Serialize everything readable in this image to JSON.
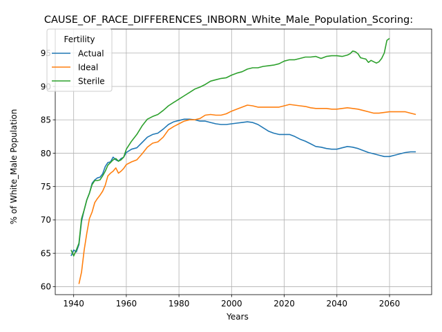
{
  "chart_data": {
    "type": "line",
    "title": "CAUSE_OF_RACE_DIFFERENCES_INBORN_White_Male_Population_Scoring:",
    "xlabel": "Years",
    "ylabel": "% of White_Male Population",
    "xlim": [
      1933,
      2076
    ],
    "ylim": [
      58.8,
      98.6
    ],
    "xticks": [
      1940,
      1960,
      1980,
      2000,
      2020,
      2040,
      2060
    ],
    "yticks": [
      60,
      65,
      70,
      75,
      80,
      85,
      90,
      95
    ],
    "grid": true,
    "legend": {
      "title": "Fertility",
      "placement": "top-left"
    },
    "series": [
      {
        "name": "Actual",
        "color": "#1f77b4",
        "points": [
          [
            1939,
            64.6
          ],
          [
            1940,
            65.5
          ],
          [
            1941,
            65.2
          ],
          [
            1942,
            66.3
          ],
          [
            1943,
            69.8
          ],
          [
            1944,
            71.5
          ],
          [
            1945,
            73.0
          ],
          [
            1946,
            74.0
          ],
          [
            1947,
            75.5
          ],
          [
            1948,
            76.0
          ],
          [
            1949,
            76.3
          ],
          [
            1950,
            76.4
          ],
          [
            1951,
            76.9
          ],
          [
            1952,
            78.0
          ],
          [
            1953,
            78.6
          ],
          [
            1954,
            78.7
          ],
          [
            1955,
            79.4
          ],
          [
            1956,
            79.0
          ],
          [
            1957,
            78.8
          ],
          [
            1958,
            79.2
          ],
          [
            1959,
            79.4
          ],
          [
            1960,
            80.1
          ],
          [
            1962,
            80.6
          ],
          [
            1964,
            80.8
          ],
          [
            1966,
            81.6
          ],
          [
            1968,
            82.4
          ],
          [
            1970,
            82.8
          ],
          [
            1972,
            83.0
          ],
          [
            1974,
            83.6
          ],
          [
            1976,
            84.3
          ],
          [
            1978,
            84.7
          ],
          [
            1980,
            84.9
          ],
          [
            1982,
            85.1
          ],
          [
            1984,
            85.1
          ],
          [
            1986,
            85.0
          ],
          [
            1988,
            84.8
          ],
          [
            1990,
            84.8
          ],
          [
            1992,
            84.6
          ],
          [
            1994,
            84.4
          ],
          [
            1996,
            84.3
          ],
          [
            1998,
            84.3
          ],
          [
            2000,
            84.4
          ],
          [
            2002,
            84.5
          ],
          [
            2004,
            84.6
          ],
          [
            2006,
            84.7
          ],
          [
            2008,
            84.6
          ],
          [
            2010,
            84.3
          ],
          [
            2012,
            83.8
          ],
          [
            2014,
            83.3
          ],
          [
            2016,
            83.0
          ],
          [
            2018,
            82.8
          ],
          [
            2020,
            82.8
          ],
          [
            2022,
            82.8
          ],
          [
            2024,
            82.5
          ],
          [
            2026,
            82.1
          ],
          [
            2028,
            81.8
          ],
          [
            2030,
            81.4
          ],
          [
            2032,
            81.0
          ],
          [
            2034,
            80.9
          ],
          [
            2036,
            80.7
          ],
          [
            2038,
            80.6
          ],
          [
            2040,
            80.6
          ],
          [
            2042,
            80.8
          ],
          [
            2044,
            81.0
          ],
          [
            2046,
            80.9
          ],
          [
            2048,
            80.7
          ],
          [
            2050,
            80.4
          ],
          [
            2052,
            80.1
          ],
          [
            2054,
            79.9
          ],
          [
            2056,
            79.7
          ],
          [
            2058,
            79.5
          ],
          [
            2060,
            79.5
          ],
          [
            2062,
            79.7
          ],
          [
            2064,
            79.9
          ],
          [
            2066,
            80.1
          ],
          [
            2068,
            80.2
          ],
          [
            2070,
            80.2
          ]
        ]
      },
      {
        "name": "Ideal",
        "color": "#ff7f0e",
        "points": [
          [
            1942,
            60.4
          ],
          [
            1943,
            62.2
          ],
          [
            1944,
            65.5
          ],
          [
            1945,
            68.0
          ],
          [
            1946,
            70.2
          ],
          [
            1947,
            71.2
          ],
          [
            1948,
            72.6
          ],
          [
            1949,
            73.2
          ],
          [
            1950,
            73.7
          ],
          [
            1951,
            74.3
          ],
          [
            1952,
            75.2
          ],
          [
            1953,
            76.6
          ],
          [
            1954,
            77.0
          ],
          [
            1955,
            77.3
          ],
          [
            1956,
            77.8
          ],
          [
            1957,
            77.0
          ],
          [
            1958,
            77.3
          ],
          [
            1959,
            77.7
          ],
          [
            1960,
            78.3
          ],
          [
            1962,
            78.7
          ],
          [
            1964,
            79.0
          ],
          [
            1966,
            79.9
          ],
          [
            1968,
            80.9
          ],
          [
            1970,
            81.5
          ],
          [
            1972,
            81.7
          ],
          [
            1974,
            82.4
          ],
          [
            1976,
            83.5
          ],
          [
            1978,
            84.0
          ],
          [
            1980,
            84.4
          ],
          [
            1982,
            84.8
          ],
          [
            1984,
            85.0
          ],
          [
            1986,
            85.0
          ],
          [
            1988,
            85.2
          ],
          [
            1990,
            85.7
          ],
          [
            1992,
            85.8
          ],
          [
            1994,
            85.7
          ],
          [
            1996,
            85.7
          ],
          [
            1998,
            85.9
          ],
          [
            2000,
            86.3
          ],
          [
            2002,
            86.6
          ],
          [
            2004,
            86.9
          ],
          [
            2006,
            87.2
          ],
          [
            2008,
            87.1
          ],
          [
            2010,
            86.9
          ],
          [
            2012,
            86.9
          ],
          [
            2014,
            86.9
          ],
          [
            2016,
            86.9
          ],
          [
            2018,
            86.9
          ],
          [
            2020,
            87.1
          ],
          [
            2022,
            87.3
          ],
          [
            2024,
            87.2
          ],
          [
            2026,
            87.1
          ],
          [
            2028,
            87.0
          ],
          [
            2030,
            86.8
          ],
          [
            2032,
            86.7
          ],
          [
            2034,
            86.7
          ],
          [
            2036,
            86.7
          ],
          [
            2038,
            86.6
          ],
          [
            2040,
            86.6
          ],
          [
            2042,
            86.7
          ],
          [
            2044,
            86.8
          ],
          [
            2046,
            86.7
          ],
          [
            2048,
            86.6
          ],
          [
            2050,
            86.4
          ],
          [
            2052,
            86.2
          ],
          [
            2054,
            86.0
          ],
          [
            2056,
            86.0
          ],
          [
            2058,
            86.1
          ],
          [
            2060,
            86.2
          ],
          [
            2062,
            86.2
          ],
          [
            2064,
            86.2
          ],
          [
            2066,
            86.2
          ],
          [
            2068,
            86.0
          ],
          [
            2070,
            85.8
          ]
        ]
      },
      {
        "name": "Sterile",
        "color": "#2ca02c",
        "points": [
          [
            1939,
            65.5
          ],
          [
            1940,
            64.6
          ],
          [
            1941,
            65.5
          ],
          [
            1942,
            66.5
          ],
          [
            1943,
            70.2
          ],
          [
            1944,
            71.5
          ],
          [
            1945,
            73.0
          ],
          [
            1946,
            74.0
          ],
          [
            1947,
            75.3
          ],
          [
            1948,
            75.9
          ],
          [
            1949,
            75.9
          ],
          [
            1950,
            76.0
          ],
          [
            1951,
            76.6
          ],
          [
            1952,
            77.3
          ],
          [
            1953,
            78.2
          ],
          [
            1954,
            78.6
          ],
          [
            1955,
            79.0
          ],
          [
            1956,
            79.2
          ],
          [
            1957,
            78.8
          ],
          [
            1958,
            79.0
          ],
          [
            1959,
            79.4
          ],
          [
            1960,
            80.6
          ],
          [
            1962,
            81.8
          ],
          [
            1964,
            82.8
          ],
          [
            1966,
            84.1
          ],
          [
            1968,
            85.1
          ],
          [
            1970,
            85.5
          ],
          [
            1972,
            85.8
          ],
          [
            1974,
            86.4
          ],
          [
            1976,
            87.1
          ],
          [
            1978,
            87.6
          ],
          [
            1980,
            88.1
          ],
          [
            1982,
            88.6
          ],
          [
            1984,
            89.1
          ],
          [
            1986,
            89.6
          ],
          [
            1988,
            89.9
          ],
          [
            1990,
            90.3
          ],
          [
            1992,
            90.8
          ],
          [
            1994,
            91.0
          ],
          [
            1996,
            91.2
          ],
          [
            1998,
            91.3
          ],
          [
            2000,
            91.7
          ],
          [
            2002,
            92.0
          ],
          [
            2004,
            92.2
          ],
          [
            2006,
            92.6
          ],
          [
            2008,
            92.8
          ],
          [
            2010,
            92.8
          ],
          [
            2012,
            93.0
          ],
          [
            2014,
            93.1
          ],
          [
            2016,
            93.2
          ],
          [
            2018,
            93.4
          ],
          [
            2020,
            93.8
          ],
          [
            2022,
            94.0
          ],
          [
            2024,
            94.0
          ],
          [
            2026,
            94.2
          ],
          [
            2028,
            94.4
          ],
          [
            2030,
            94.4
          ],
          [
            2032,
            94.5
          ],
          [
            2034,
            94.2
          ],
          [
            2036,
            94.5
          ],
          [
            2038,
            94.6
          ],
          [
            2040,
            94.6
          ],
          [
            2042,
            94.5
          ],
          [
            2044,
            94.7
          ],
          [
            2045,
            94.9
          ],
          [
            2046,
            95.3
          ],
          [
            2047,
            95.2
          ],
          [
            2048,
            94.9
          ],
          [
            2049,
            94.3
          ],
          [
            2050,
            94.2
          ],
          [
            2051,
            94.1
          ],
          [
            2052,
            93.6
          ],
          [
            2053,
            93.9
          ],
          [
            2054,
            93.7
          ],
          [
            2055,
            93.5
          ],
          [
            2056,
            93.7
          ],
          [
            2057,
            94.2
          ],
          [
            2058,
            95.0
          ],
          [
            2059,
            96.9
          ],
          [
            2060,
            97.2
          ]
        ]
      }
    ]
  }
}
